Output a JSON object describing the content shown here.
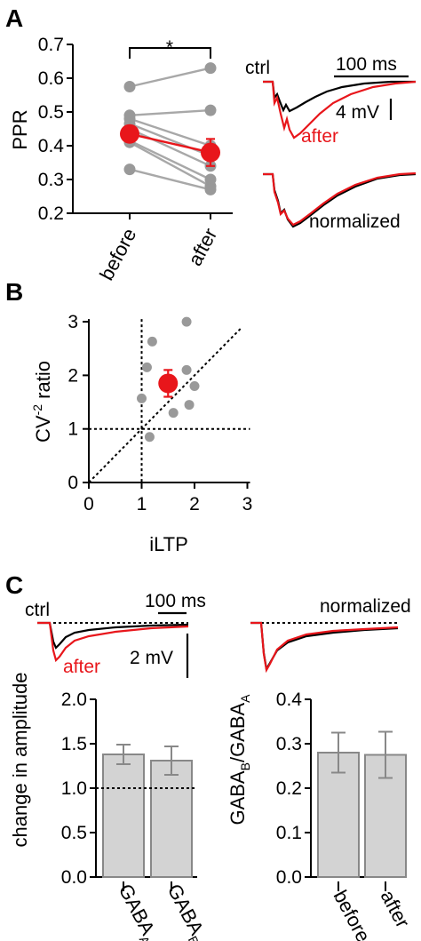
{
  "panels": {
    "A": {
      "letter": "A",
      "significance": "*",
      "ylabel": "PPR",
      "trace_labels": {
        "ctrl": "ctrl",
        "after": "after",
        "normalized": "normalized"
      },
      "scalebars": {
        "time": "100 ms",
        "voltage": "4 mV"
      }
    },
    "B": {
      "letter": "B"
    },
    "C": {
      "letter": "C",
      "trace_labels": {
        "ctrl": "ctrl",
        "after": "after",
        "normalized": "normalized"
      },
      "scalebars": {
        "time": "100 ms",
        "voltage": "2 mV"
      },
      "left_ylabel": "change in amplitude",
      "right_ylabel": {
        "b1": "GABA",
        "s1": "B",
        "slash": "/GABA",
        "s2": "A"
      },
      "left_categories": [
        {
          "base": "GABA",
          "sub": "A"
        },
        {
          "base": "GABA",
          "sub": "B"
        }
      ]
    }
  },
  "colors": {
    "red": "#e8161b",
    "gray_point": "#999999",
    "bar_fill": "#d3d3d3",
    "bar_edge": "#888888"
  },
  "chart_data": [
    {
      "type": "scatter",
      "panel": "A",
      "ylabel": "PPR",
      "categories": [
        "before",
        "after"
      ],
      "ylim": [
        0.2,
        0.7
      ],
      "yticks": [
        "0.2",
        "0.3",
        "0.4",
        "0.5",
        "0.6",
        "0.7"
      ],
      "paired_values": [
        [
          0.575,
          0.63
        ],
        [
          0.49,
          0.505
        ],
        [
          0.48,
          0.4
        ],
        [
          0.465,
          0.37
        ],
        [
          0.45,
          0.34
        ],
        [
          0.415,
          0.3
        ],
        [
          0.41,
          0.28
        ],
        [
          0.33,
          0.27
        ]
      ],
      "means": [
        0.435,
        0.38
      ],
      "mean_error": [
        0.015,
        0.04
      ],
      "significance": "*"
    },
    {
      "type": "scatter",
      "panel": "B",
      "xlabel": "iLTP",
      "ylabel_parts": {
        "base": "CV",
        "sup": "-2",
        "rest": " ratio"
      },
      "xlim": [
        0,
        3
      ],
      "ylim": [
        0,
        3
      ],
      "xticks": [
        "0",
        "1",
        "2",
        "3"
      ],
      "yticks": [
        "0",
        "1",
        "2",
        "3"
      ],
      "points": [
        [
          1.85,
          3.0
        ],
        [
          1.2,
          2.63
        ],
        [
          1.1,
          2.15
        ],
        [
          1.85,
          2.1
        ],
        [
          1.0,
          1.57
        ],
        [
          2.0,
          1.8
        ],
        [
          1.9,
          1.45
        ],
        [
          1.6,
          1.3
        ],
        [
          1.15,
          0.85
        ]
      ],
      "mean": [
        1.5,
        1.85
      ],
      "mean_error_y": 0.25,
      "reference_lines": [
        "x=1",
        "y=1",
        "identity"
      ]
    },
    {
      "type": "bar",
      "panel": "C-left",
      "ylabel": "change in amplitude",
      "categories": [
        "GABAA",
        "GABAB"
      ],
      "values": [
        1.38,
        1.31
      ],
      "errors": [
        0.11,
        0.16
      ],
      "ylim": [
        0.0,
        2.0
      ],
      "yticks": [
        "0.0",
        "0.5",
        "1.0",
        "1.5",
        "2.0"
      ],
      "reference_line": 1.0
    },
    {
      "type": "bar",
      "panel": "C-right",
      "ylabel": "GABAB/GABAA",
      "categories": [
        "before",
        "after"
      ],
      "values": [
        0.28,
        0.275
      ],
      "errors": [
        0.045,
        0.052
      ],
      "ylim": [
        0.0,
        0.4
      ],
      "yticks": [
        "0.0",
        "0.1",
        "0.2",
        "0.3",
        "0.4"
      ]
    }
  ]
}
